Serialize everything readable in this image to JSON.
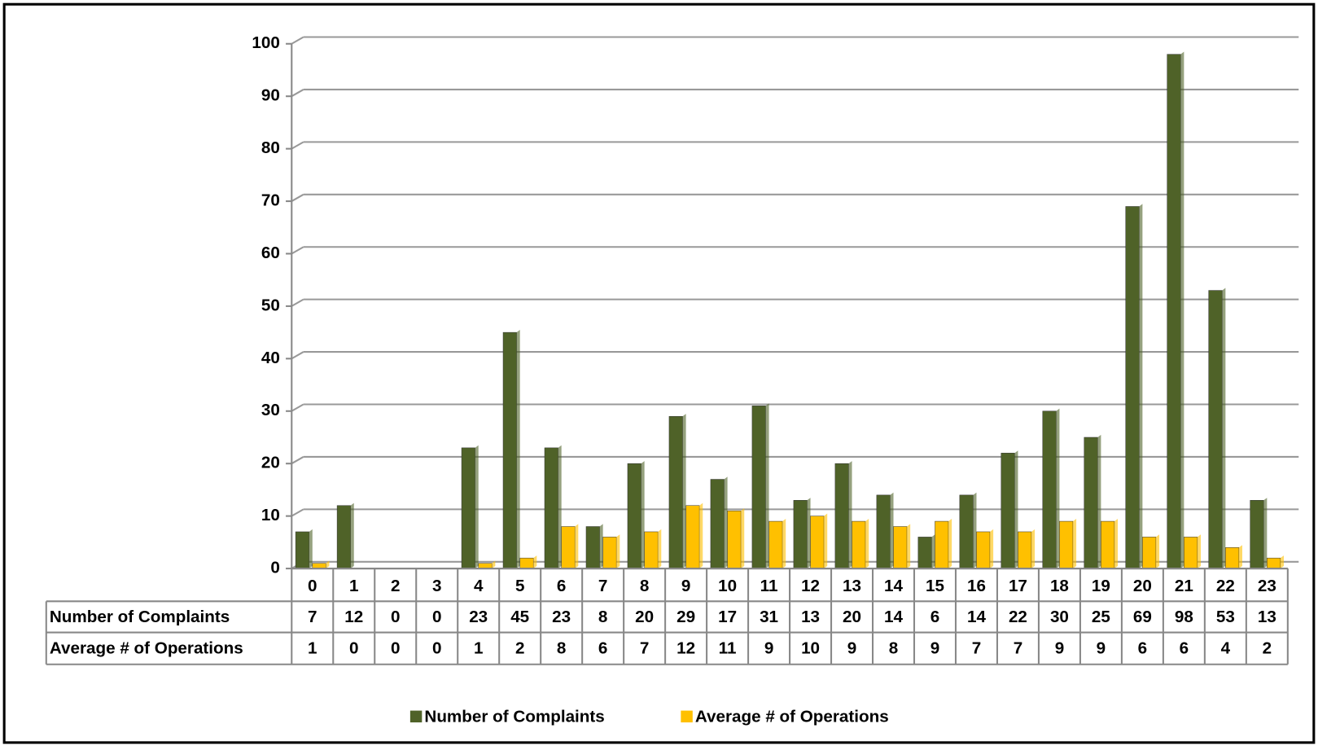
{
  "chart_data": {
    "type": "bar",
    "categories": [
      "0",
      "1",
      "2",
      "3",
      "4",
      "5",
      "6",
      "7",
      "8",
      "9",
      "10",
      "11",
      "12",
      "13",
      "14",
      "15",
      "16",
      "17",
      "18",
      "19",
      "20",
      "21",
      "22",
      "23"
    ],
    "series": [
      {
        "name": "Number of Complaints",
        "color": "#4f6228",
        "values": [
          7,
          12,
          0,
          0,
          23,
          45,
          23,
          8,
          20,
          29,
          17,
          31,
          13,
          20,
          14,
          6,
          14,
          22,
          30,
          25,
          69,
          98,
          53,
          13
        ]
      },
      {
        "name": "Average # of Operations",
        "color": "#ffc000",
        "values": [
          1,
          0,
          0,
          0,
          1,
          2,
          8,
          6,
          7,
          12,
          11,
          9,
          10,
          9,
          8,
          9,
          7,
          7,
          9,
          9,
          6,
          6,
          4,
          2
        ]
      }
    ],
    "ylim": [
      0,
      100
    ],
    "yticks": [
      0,
      10,
      20,
      30,
      40,
      50,
      60,
      70,
      80,
      90,
      100
    ],
    "grid": true,
    "legend": "bottom"
  }
}
